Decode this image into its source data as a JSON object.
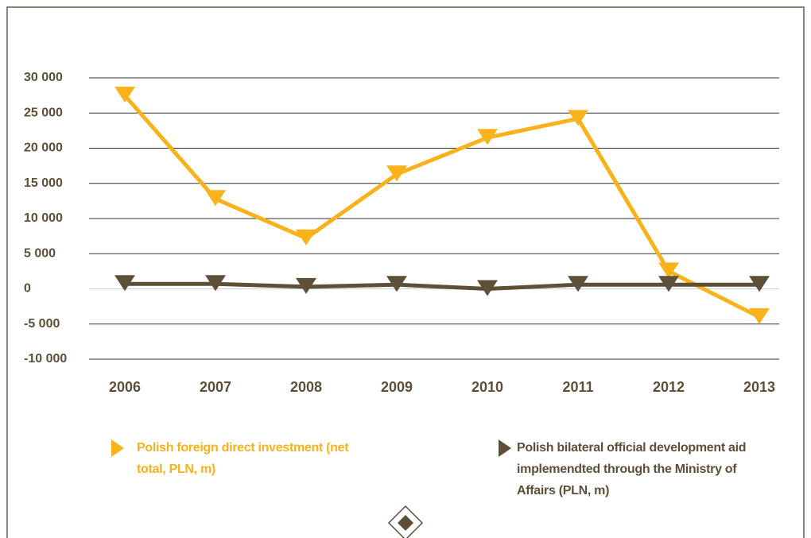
{
  "chart_data": {
    "type": "line",
    "categories": [
      "2006",
      "2007",
      "2008",
      "2009",
      "2010",
      "2011",
      "2012",
      "2013"
    ],
    "series": [
      {
        "name": "Polish foreign direct investment (net total, PLN, m)",
        "color": "#f9b21b",
        "values": [
          27500,
          12800,
          7200,
          16300,
          21500,
          24200,
          2500,
          -4000
        ]
      },
      {
        "name": "Polish bilateral official development aid implemendted through the Ministry of Affairs (PLN, m)",
        "color": "#5e5038",
        "values": [
          700,
          700,
          300,
          600,
          0,
          600,
          600,
          600
        ]
      }
    ],
    "ylim": [
      -10000,
      30000
    ],
    "yticks": [
      {
        "value": -10000,
        "label": "-10 000"
      },
      {
        "value": -5000,
        "label": "-5 000"
      },
      0,
      {
        "value": 5000,
        "label": "5 000"
      },
      {
        "value": 10000,
        "label": "10 000"
      },
      {
        "value": 15000,
        "label": "15 000"
      },
      {
        "value": 20000,
        "label": "20 000"
      },
      {
        "value": 25000,
        "label": "25 000"
      },
      {
        "value": 30000,
        "label": "30 000"
      }
    ],
    "grid": true
  }
}
